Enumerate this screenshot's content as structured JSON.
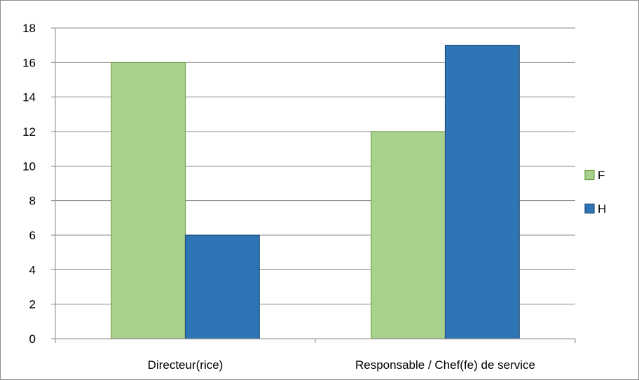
{
  "chart_data": {
    "type": "bar",
    "categories": [
      "Directeur(rice)",
      "Responsable / Chef(fe) de service"
    ],
    "series": [
      {
        "name": "F",
        "values": [
          16,
          12
        ],
        "color": "#a9d18e",
        "stroke": "#6ea04a"
      },
      {
        "name": "H",
        "values": [
          6,
          17
        ],
        "color": "#2e75b6",
        "stroke": "#1f4e79"
      }
    ],
    "ylim": [
      0,
      18
    ],
    "yticks": [
      0,
      2,
      4,
      6,
      8,
      10,
      12,
      14,
      16,
      18
    ],
    "grid": true,
    "legend_position": "right"
  }
}
